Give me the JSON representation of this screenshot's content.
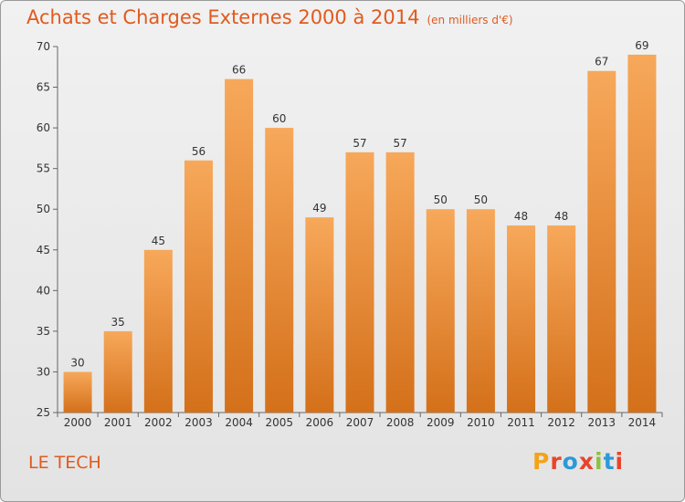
{
  "header": {
    "title": "Achats et Charges Externes 2000 à 2014",
    "unit": "(en milliers d'€)"
  },
  "footer": {
    "place": "LE TECH",
    "logo": {
      "letters": [
        "P",
        "r",
        "o",
        "x",
        "i",
        "t",
        "i"
      ],
      "colors": [
        "#f2a31b",
        "#e8442c",
        "#2c9ad6",
        "#e8442c",
        "#8bc23f",
        "#2c9ad6",
        "#e8442c"
      ]
    }
  },
  "colors": {
    "bar_top": "#f7a85a",
    "bar_bottom": "#d4701a",
    "text_accent": "#e05a1e"
  },
  "chart_data": {
    "type": "bar",
    "title": "Achats et Charges Externes 2000 à 2014",
    "xlabel": "",
    "ylabel": "",
    "categories": [
      "2000",
      "2001",
      "2002",
      "2003",
      "2004",
      "2005",
      "2006",
      "2007",
      "2008",
      "2009",
      "2010",
      "2011",
      "2012",
      "2013",
      "2014"
    ],
    "values": [
      30,
      35,
      45,
      56,
      66,
      60,
      49,
      57,
      57,
      50,
      50,
      48,
      48,
      67,
      69
    ],
    "ylim": [
      25,
      70
    ],
    "yticks": [
      25,
      30,
      35,
      40,
      45,
      50,
      55,
      60,
      65,
      70
    ],
    "grid": false,
    "legend": "none"
  }
}
